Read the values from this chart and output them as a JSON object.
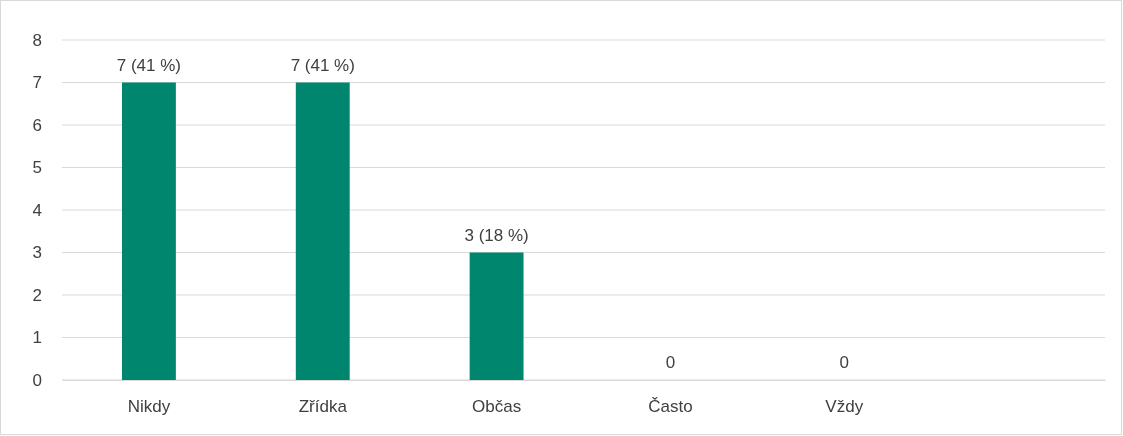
{
  "chart_data": {
    "type": "bar",
    "categories": [
      "Nikdy",
      "Zřídka",
      "Občas",
      "Často",
      "Vždy",
      null
    ],
    "values": [
      7,
      7,
      3,
      0,
      0,
      null
    ],
    "color": "#00856f",
    "value_labels": [
      "7 (41 %)",
      "7 (41 %)",
      "3 (18 %)",
      "0",
      "0",
      null
    ],
    "ylim": [
      0,
      8
    ],
    "yticks": [
      0,
      1,
      2,
      3,
      4,
      5,
      6,
      7,
      8
    ],
    "grid": "y"
  }
}
